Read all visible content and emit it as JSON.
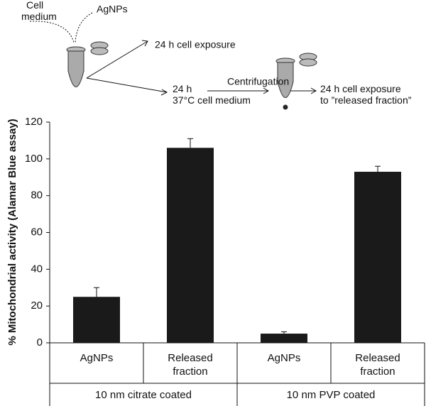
{
  "diagram": {
    "cell_medium": "Cell medium",
    "agnps": "AgNPs",
    "exposure": "24 h cell exposure",
    "incubation": "24 h 37°C cell medium",
    "centrifugation": "Centrifugation",
    "released_exposure": "24 h cell exposure to ”released fraction”"
  },
  "chart_data": {
    "type": "bar",
    "ylabel": "% Mitochondrial activity (Alamar Blue assay)",
    "categories": [
      "AgNPs",
      "Released fraction",
      "AgNPs",
      "Released fraction"
    ],
    "groups": [
      "10 nm citrate coated",
      "10 nm PVP coated"
    ],
    "values": [
      25,
      106,
      5,
      93
    ],
    "errors": [
      5,
      5,
      1,
      3
    ],
    "color": "#1a1a1a",
    "ylim": [
      0,
      120
    ],
    "yticks": [
      0,
      20,
      40,
      60,
      80,
      100,
      120
    ]
  }
}
